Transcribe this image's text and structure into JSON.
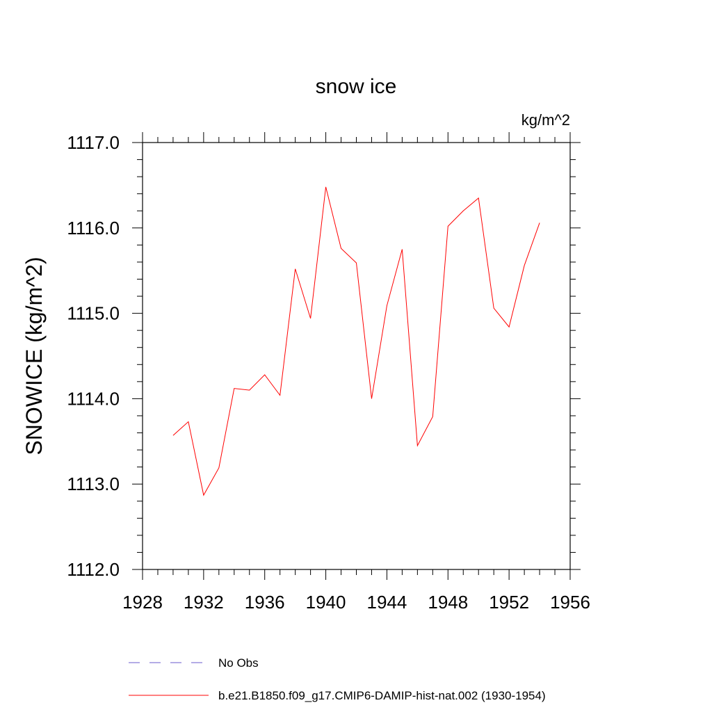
{
  "chart_data": {
    "type": "line",
    "title": "snow ice",
    "units": "kg/m^2",
    "xlabel": "",
    "ylabel": "SNOWICE  (kg/m^2)",
    "xlim": [
      1928,
      1956
    ],
    "ylim": [
      1112.0,
      1117.0
    ],
    "x_ticks": [
      1928,
      1932,
      1936,
      1940,
      1944,
      1948,
      1952,
      1956
    ],
    "x_tick_labels": [
      "1928",
      "1932",
      "1936",
      "1940",
      "1944",
      "1948",
      "1952",
      "1956"
    ],
    "y_ticks": [
      1112.0,
      1113.0,
      1114.0,
      1115.0,
      1116.0,
      1117.0
    ],
    "y_tick_labels": [
      "1112.0",
      "1113.0",
      "1114.0",
      "1115.0",
      "1116.0",
      "1117.0"
    ],
    "x_minor_step": 1,
    "y_minor_step": 0.2,
    "grid": false,
    "legend_position": "bottom",
    "series": [
      {
        "name": "b.e21.B1850.f09_g17.CMIP6-DAMIP-hist-nat.002 (1930-1954)",
        "color": "#ff0000",
        "dash": "solid",
        "x": [
          1930,
          1931,
          1932,
          1933,
          1934,
          1935,
          1936,
          1937,
          1938,
          1939,
          1940,
          1941,
          1942,
          1943,
          1944,
          1945,
          1946,
          1947,
          1948,
          1949,
          1950,
          1951,
          1952,
          1953,
          1954
        ],
        "values": [
          1113.57,
          1113.73,
          1112.87,
          1113.19,
          1114.12,
          1114.1,
          1114.28,
          1114.04,
          1115.52,
          1114.94,
          1116.48,
          1115.76,
          1115.59,
          1114.0,
          1115.09,
          1115.75,
          1113.45,
          1113.79,
          1116.02,
          1116.2,
          1116.35,
          1115.06,
          1114.84,
          1115.56,
          1116.06
        ]
      }
    ],
    "legend": [
      {
        "label": "No Obs",
        "color": "#6a5acd",
        "dash": "dashed"
      },
      {
        "label": "b.e21.B1850.f09_g17.CMIP6-DAMIP-hist-nat.002 (1930-1954)",
        "color": "#ff0000",
        "dash": "solid"
      }
    ]
  }
}
